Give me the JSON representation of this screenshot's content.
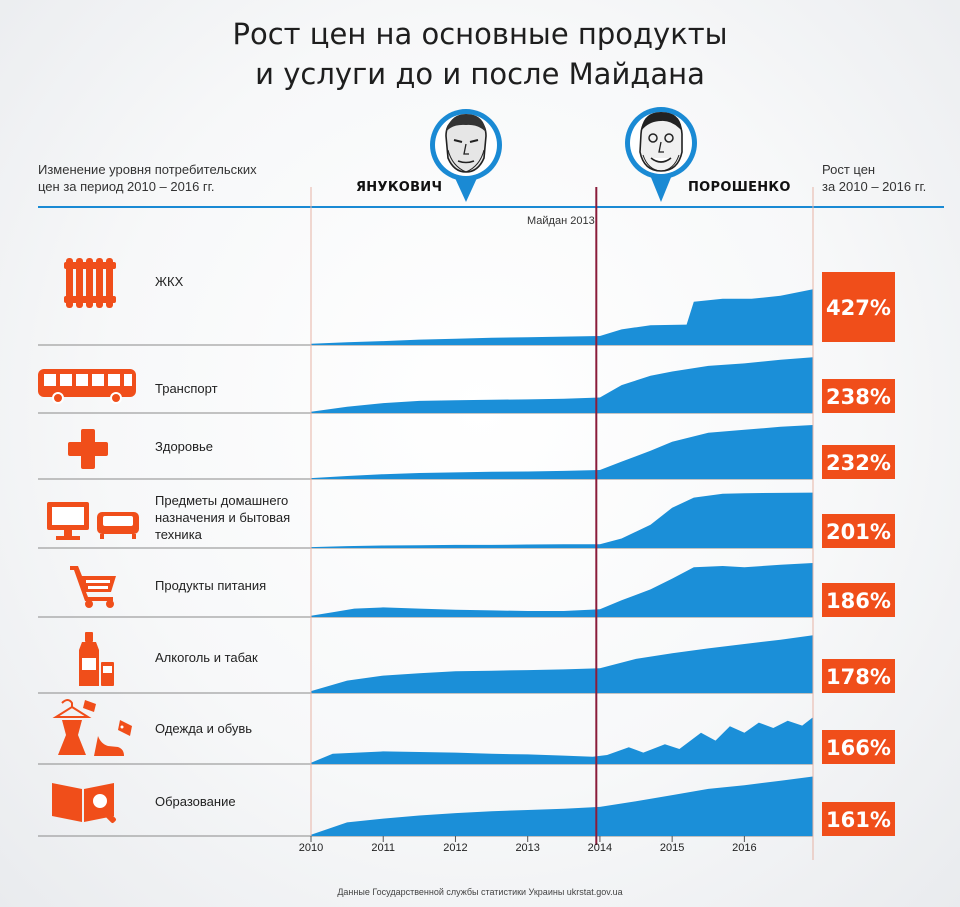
{
  "title_line1": "Рост цен на основные продукты",
  "title_line2": "и услуги до и после Майдана",
  "left_header_line1": "Изменение уровня потребительских",
  "left_header_line2": "цен за период 2010 – 2016 гг.",
  "right_header_line1": "Рост цен",
  "right_header_line2": "за 2010 – 2016 гг.",
  "president_left": "ЯНУКОВИЧ",
  "president_right": "ПОРОШЕНКО",
  "maidan_label": "Майдан 2013",
  "footer": "Данные Государственной службы статистики Украины ukrstat.gov.ua",
  "colors": {
    "area": "#1b8fd8",
    "accent": "#f04e1a",
    "header_line": "#1a8ad4",
    "maidan_line": "#8a1c3a",
    "divider": "#8a8a8a",
    "grid_line": "#e7b3a5"
  },
  "icons": [
    "radiator-icon",
    "bus-icon",
    "health-cross-icon",
    "appliances-icon",
    "shopping-cart-icon",
    "alcohol-tobacco-icon",
    "clothing-shoes-icon",
    "education-book-icon"
  ],
  "chart_data": {
    "type": "area",
    "x_ticks": [
      "2010",
      "2011",
      "2012",
      "2013",
      "2014",
      "2015",
      "2016"
    ],
    "x_range": [
      2010,
      2016.95
    ],
    "maidan_x": 2013.95,
    "series": [
      {
        "name": "ЖКХ",
        "growth": "427%",
        "points": [
          [
            2010,
            0.2
          ],
          [
            2010.5,
            0.45
          ],
          [
            2011,
            0.65
          ],
          [
            2011.5,
            0.9
          ],
          [
            2012,
            1.05
          ],
          [
            2012.5,
            1.2
          ],
          [
            2013,
            1.3
          ],
          [
            2013.5,
            1.4
          ],
          [
            2014,
            1.5
          ],
          [
            2014.3,
            2.6
          ],
          [
            2014.7,
            3.3
          ],
          [
            2015.2,
            3.4
          ],
          [
            2015.3,
            7.2
          ],
          [
            2015.7,
            7.7
          ],
          [
            2016.1,
            7.7
          ],
          [
            2016.5,
            8.2
          ],
          [
            2016.95,
            9.3
          ]
        ]
      },
      {
        "name": "Транспорт",
        "growth": "238%",
        "points": [
          [
            2010,
            0.2
          ],
          [
            2010.5,
            1.0
          ],
          [
            2011,
            1.6
          ],
          [
            2011.5,
            1.95
          ],
          [
            2012,
            2.05
          ],
          [
            2012.5,
            2.15
          ],
          [
            2013,
            2.2
          ],
          [
            2013.5,
            2.3
          ],
          [
            2014,
            2.5
          ],
          [
            2014.3,
            4.5
          ],
          [
            2014.7,
            6.0
          ],
          [
            2015,
            6.7
          ],
          [
            2015.5,
            7.6
          ],
          [
            2016,
            8.0
          ],
          [
            2016.5,
            8.6
          ],
          [
            2016.95,
            9.0
          ]
        ]
      },
      {
        "name": "Здоровье",
        "growth": "232%",
        "points": [
          [
            2010,
            0.15
          ],
          [
            2010.5,
            0.5
          ],
          [
            2011,
            0.8
          ],
          [
            2011.5,
            1.0
          ],
          [
            2012,
            1.1
          ],
          [
            2012.5,
            1.2
          ],
          [
            2013,
            1.25
          ],
          [
            2013.5,
            1.35
          ],
          [
            2014,
            1.5
          ],
          [
            2014.3,
            2.9
          ],
          [
            2014.7,
            4.7
          ],
          [
            2015,
            6.2
          ],
          [
            2015.5,
            7.7
          ],
          [
            2016,
            8.2
          ],
          [
            2016.5,
            8.7
          ],
          [
            2016.95,
            9.0
          ]
        ]
      },
      {
        "name": "Предметы домашнего назначения и бытовая техника",
        "growth": "201%",
        "points": [
          [
            2010,
            0.15
          ],
          [
            2010.5,
            0.3
          ],
          [
            2011,
            0.4
          ],
          [
            2011.5,
            0.45
          ],
          [
            2012,
            0.5
          ],
          [
            2012.5,
            0.5
          ],
          [
            2013,
            0.55
          ],
          [
            2013.5,
            0.6
          ],
          [
            2014,
            0.6
          ],
          [
            2014.3,
            1.5
          ],
          [
            2014.7,
            3.7
          ],
          [
            2015,
            6.4
          ],
          [
            2015.3,
            8.0
          ],
          [
            2015.7,
            8.6
          ],
          [
            2016,
            8.7
          ],
          [
            2016.95,
            8.8
          ]
        ]
      },
      {
        "name": "Продукты питания",
        "growth": "186%",
        "points": [
          [
            2010,
            0.2
          ],
          [
            2010.3,
            0.8
          ],
          [
            2010.6,
            1.4
          ],
          [
            2011,
            1.6
          ],
          [
            2011.5,
            1.4
          ],
          [
            2012,
            1.2
          ],
          [
            2012.5,
            1.1
          ],
          [
            2013,
            1.0
          ],
          [
            2013.5,
            1.0
          ],
          [
            2014,
            1.3
          ],
          [
            2014.3,
            2.8
          ],
          [
            2014.7,
            4.6
          ],
          [
            2015,
            6.4
          ],
          [
            2015.3,
            8.3
          ],
          [
            2015.7,
            8.5
          ],
          [
            2016,
            8.3
          ],
          [
            2016.5,
            8.7
          ],
          [
            2016.95,
            9.0
          ]
        ]
      },
      {
        "name": "Алкоголь и табак",
        "growth": "178%",
        "points": [
          [
            2010,
            0.3
          ],
          [
            2010.5,
            2.0
          ],
          [
            2011,
            2.8
          ],
          [
            2011.5,
            3.2
          ],
          [
            2012,
            3.5
          ],
          [
            2012.5,
            3.6
          ],
          [
            2013,
            3.7
          ],
          [
            2013.5,
            3.8
          ],
          [
            2014,
            4.0
          ],
          [
            2014.5,
            5.5
          ],
          [
            2015,
            6.4
          ],
          [
            2015.5,
            7.2
          ],
          [
            2016,
            7.9
          ],
          [
            2016.5,
            8.6
          ],
          [
            2016.95,
            9.3
          ]
        ]
      },
      {
        "name": "Одежда и обувь",
        "growth": "166%",
        "points": [
          [
            2010,
            0.2
          ],
          [
            2010.3,
            1.7
          ],
          [
            2011,
            2.1
          ],
          [
            2011.5,
            2.0
          ],
          [
            2012,
            1.9
          ],
          [
            2012.5,
            1.7
          ],
          [
            2013,
            1.6
          ],
          [
            2013.5,
            1.4
          ],
          [
            2013.9,
            1.2
          ],
          [
            2014.1,
            1.5
          ],
          [
            2014.4,
            2.8
          ],
          [
            2014.6,
            1.9
          ],
          [
            2014.9,
            3.3
          ],
          [
            2015.1,
            2.5
          ],
          [
            2015.4,
            5.2
          ],
          [
            2015.6,
            3.9
          ],
          [
            2015.8,
            6.3
          ],
          [
            2016.0,
            5.2
          ],
          [
            2016.2,
            6.9
          ],
          [
            2016.4,
            6.0
          ],
          [
            2016.6,
            7.2
          ],
          [
            2016.8,
            6.4
          ],
          [
            2016.95,
            7.8
          ]
        ]
      },
      {
        "name": "Образование",
        "growth": "161%",
        "points": [
          [
            2010,
            0.2
          ],
          [
            2010.5,
            2.2
          ],
          [
            2011,
            2.8
          ],
          [
            2011.5,
            3.3
          ],
          [
            2012,
            3.7
          ],
          [
            2012.5,
            4.0
          ],
          [
            2013,
            4.2
          ],
          [
            2013.5,
            4.4
          ],
          [
            2014,
            4.7
          ],
          [
            2014.5,
            5.6
          ],
          [
            2015,
            6.6
          ],
          [
            2015.5,
            7.6
          ],
          [
            2016,
            8.2
          ],
          [
            2016.5,
            8.9
          ],
          [
            2016.95,
            9.6
          ]
        ]
      }
    ]
  }
}
